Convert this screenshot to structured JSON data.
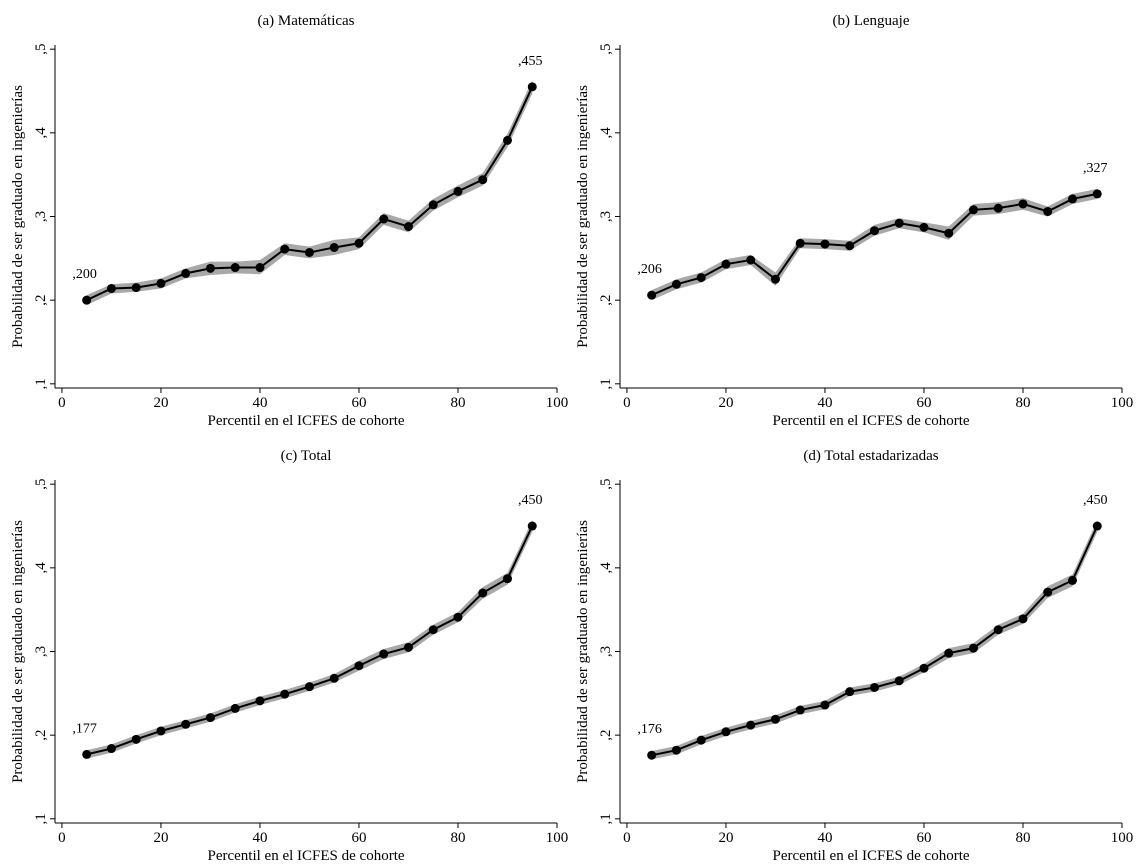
{
  "chart_data": [
    {
      "type": "line",
      "title": "(a) Matemáticas",
      "xlabel": "Percentil en el ICFES de cohorte",
      "ylabel": "Probabilidad de ser graduado en ingenierías",
      "x": [
        5,
        10,
        15,
        20,
        25,
        30,
        35,
        40,
        45,
        50,
        55,
        60,
        65,
        70,
        75,
        80,
        85,
        90,
        95
      ],
      "series": [
        {
          "color": "#000000",
          "values": [
            0.2,
            0.214,
            0.215,
            0.22,
            0.232,
            0.238,
            0.239,
            0.239,
            0.261,
            0.257,
            0.263,
            0.268,
            0.297,
            0.288,
            0.314,
            0.33,
            0.344,
            0.391,
            0.455
          ],
          "value_labels": [
            ",200",
            null,
            null,
            null,
            null,
            null,
            null,
            null,
            null,
            null,
            null,
            null,
            null,
            null,
            null,
            null,
            null,
            null,
            ",455"
          ]
        }
      ],
      "band": {
        "color": "#a8a8a8",
        "lower": [
          0.194,
          0.208,
          0.21,
          0.214,
          0.226,
          0.23,
          0.232,
          0.231,
          0.254,
          0.25,
          0.254,
          0.261,
          0.29,
          0.281,
          0.307,
          0.323,
          0.337,
          0.383,
          0.447
        ],
        "upper": [
          0.206,
          0.219,
          0.221,
          0.226,
          0.238,
          0.246,
          0.246,
          0.248,
          0.268,
          0.264,
          0.272,
          0.275,
          0.304,
          0.295,
          0.321,
          0.337,
          0.352,
          0.399,
          0.463
        ]
      },
      "xlim": [
        -1.4,
        100
      ],
      "xticks": [
        0,
        20,
        40,
        60,
        80,
        100
      ],
      "ylim": [
        0.095,
        0.505
      ],
      "yticks": [
        {
          "value": 0.1,
          "label": ",1"
        },
        {
          "value": 0.2,
          "label": ",2"
        },
        {
          "value": 0.3,
          "label": ",3"
        },
        {
          "value": 0.4,
          "label": ",4"
        },
        {
          "value": 0.5,
          "label": ",5"
        }
      ]
    },
    {
      "type": "line",
      "title": "(b) Lenguaje",
      "xlabel": "Percentil en el ICFES de cohorte",
      "ylabel": "Probabilidad de ser graduado en ingenierías",
      "x": [
        5,
        10,
        15,
        20,
        25,
        30,
        35,
        40,
        45,
        50,
        55,
        60,
        65,
        70,
        75,
        80,
        85,
        90,
        95
      ],
      "series": [
        {
          "color": "#000000",
          "values": [
            0.206,
            0.219,
            0.227,
            0.243,
            0.248,
            0.225,
            0.268,
            0.267,
            0.265,
            0.283,
            0.292,
            0.287,
            0.28,
            0.308,
            0.31,
            0.315,
            0.306,
            0.321,
            0.327
          ],
          "value_labels": [
            ",206",
            null,
            null,
            null,
            null,
            null,
            null,
            null,
            null,
            null,
            null,
            null,
            null,
            null,
            null,
            null,
            null,
            null,
            ",327"
          ]
        }
      ],
      "band": {
        "color": "#a8a8a8",
        "lower": [
          0.2,
          0.213,
          0.221,
          0.237,
          0.242,
          0.217,
          0.262,
          0.261,
          0.259,
          0.277,
          0.286,
          0.281,
          0.272,
          0.301,
          0.303,
          0.308,
          0.3,
          0.315,
          0.321
        ],
        "upper": [
          0.212,
          0.225,
          0.233,
          0.249,
          0.254,
          0.233,
          0.274,
          0.273,
          0.271,
          0.29,
          0.298,
          0.293,
          0.288,
          0.315,
          0.317,
          0.322,
          0.312,
          0.327,
          0.333
        ]
      },
      "xlim": [
        -1.4,
        100
      ],
      "xticks": [
        0,
        20,
        40,
        60,
        80,
        100
      ],
      "ylim": [
        0.095,
        0.505
      ],
      "yticks": [
        {
          "value": 0.1,
          "label": ",1"
        },
        {
          "value": 0.2,
          "label": ",2"
        },
        {
          "value": 0.3,
          "label": ",3"
        },
        {
          "value": 0.4,
          "label": ",4"
        },
        {
          "value": 0.5,
          "label": ",5"
        }
      ]
    },
    {
      "type": "line",
      "title": "(c) Total",
      "xlabel": "Percentil en el ICFES de cohorte",
      "ylabel": "Probabilidad de ser graduado en ingenierías",
      "x": [
        5,
        10,
        15,
        20,
        25,
        30,
        35,
        40,
        45,
        50,
        55,
        60,
        65,
        70,
        75,
        80,
        85,
        90,
        95
      ],
      "series": [
        {
          "color": "#000000",
          "values": [
            0.177,
            0.184,
            0.195,
            0.205,
            0.213,
            0.221,
            0.232,
            0.241,
            0.249,
            0.258,
            0.268,
            0.283,
            0.297,
            0.305,
            0.326,
            0.341,
            0.37,
            0.387,
            0.45
          ],
          "value_labels": [
            ",177",
            null,
            null,
            null,
            null,
            null,
            null,
            null,
            null,
            null,
            null,
            null,
            null,
            null,
            null,
            null,
            null,
            null,
            ",450"
          ]
        }
      ],
      "band": {
        "color": "#a8a8a8",
        "lower": [
          0.172,
          0.179,
          0.19,
          0.2,
          0.208,
          0.216,
          0.227,
          0.236,
          0.244,
          0.253,
          0.263,
          0.277,
          0.291,
          0.299,
          0.32,
          0.335,
          0.363,
          0.38,
          0.443
        ],
        "upper": [
          0.182,
          0.189,
          0.2,
          0.21,
          0.218,
          0.226,
          0.237,
          0.246,
          0.254,
          0.263,
          0.273,
          0.289,
          0.303,
          0.311,
          0.332,
          0.347,
          0.377,
          0.394,
          0.457
        ]
      },
      "xlim": [
        -1.4,
        100
      ],
      "xticks": [
        0,
        20,
        40,
        60,
        80,
        100
      ],
      "ylim": [
        0.095,
        0.505
      ],
      "yticks": [
        {
          "value": 0.1,
          "label": ",1"
        },
        {
          "value": 0.2,
          "label": ",2"
        },
        {
          "value": 0.3,
          "label": ",3"
        },
        {
          "value": 0.4,
          "label": ",4"
        },
        {
          "value": 0.5,
          "label": ",5"
        }
      ]
    },
    {
      "type": "line",
      "title": "(d) Total estadarizadas",
      "xlabel": "Percentil en el ICFES de cohorte",
      "ylabel": "Probabilidad de ser graduado en ingenierías",
      "x": [
        5,
        10,
        15,
        20,
        25,
        30,
        35,
        40,
        45,
        50,
        55,
        60,
        65,
        70,
        75,
        80,
        85,
        90,
        95
      ],
      "series": [
        {
          "color": "#000000",
          "values": [
            0.176,
            0.182,
            0.194,
            0.204,
            0.212,
            0.219,
            0.23,
            0.236,
            0.252,
            0.257,
            0.265,
            0.28,
            0.298,
            0.304,
            0.326,
            0.339,
            0.371,
            0.385,
            0.45
          ],
          "value_labels": [
            ",176",
            null,
            null,
            null,
            null,
            null,
            null,
            null,
            null,
            null,
            null,
            null,
            null,
            null,
            null,
            null,
            null,
            null,
            ",450"
          ]
        }
      ],
      "band": {
        "color": "#a8a8a8",
        "lower": [
          0.171,
          0.177,
          0.189,
          0.199,
          0.207,
          0.214,
          0.225,
          0.231,
          0.247,
          0.252,
          0.26,
          0.275,
          0.292,
          0.298,
          0.32,
          0.333,
          0.364,
          0.378,
          0.443
        ],
        "upper": [
          0.181,
          0.187,
          0.199,
          0.209,
          0.217,
          0.224,
          0.235,
          0.241,
          0.257,
          0.262,
          0.27,
          0.285,
          0.304,
          0.31,
          0.332,
          0.345,
          0.378,
          0.392,
          0.457
        ]
      },
      "xlim": [
        -1.4,
        100
      ],
      "xticks": [
        0,
        20,
        40,
        60,
        80,
        100
      ],
      "ylim": [
        0.095,
        0.505
      ],
      "yticks": [
        {
          "value": 0.1,
          "label": ",1"
        },
        {
          "value": 0.2,
          "label": ",2"
        },
        {
          "value": 0.3,
          "label": ",3"
        },
        {
          "value": 0.4,
          "label": ",4"
        },
        {
          "value": 0.5,
          "label": ",5"
        }
      ]
    }
  ]
}
